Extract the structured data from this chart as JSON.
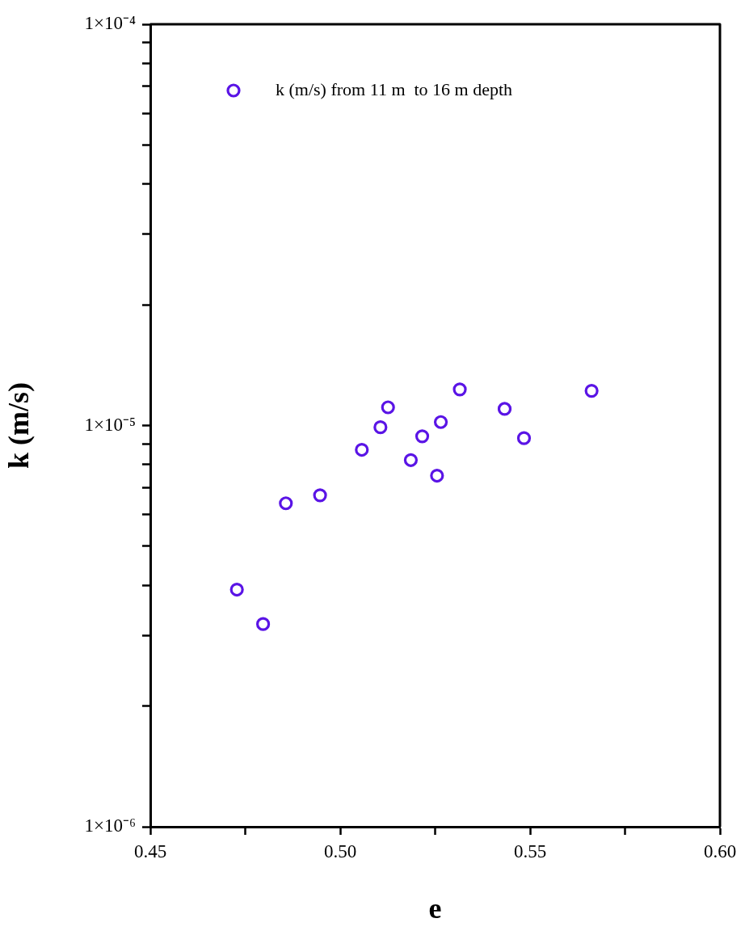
{
  "chart_data": {
    "type": "scatter",
    "xlabel": "e",
    "ylabel": "k (m/s)",
    "log": "y",
    "legend": "top left",
    "marker": "circle",
    "grid": false,
    "xlim": [
      0.45,
      0.6
    ],
    "ylim": [
      1e-06,
      0.0001
    ],
    "xticks": [
      {
        "value": 0.45,
        "label": "0.45"
      },
      {
        "value": 0.475,
        "label": null
      },
      {
        "value": 0.5,
        "label": "0.50"
      },
      {
        "value": 0.525,
        "label": null
      },
      {
        "value": 0.55,
        "label": "0.55"
      },
      {
        "value": 0.575,
        "label": null
      },
      {
        "value": 0.6,
        "label": "0.60"
      }
    ],
    "yticks": [
      {
        "value": 1e-06,
        "label": "1×10⁻⁶"
      },
      {
        "value": 2e-06,
        "label": null
      },
      {
        "value": 3e-06,
        "label": null
      },
      {
        "value": 4e-06,
        "label": null
      },
      {
        "value": 5e-06,
        "label": null
      },
      {
        "value": 6e-06,
        "label": null
      },
      {
        "value": 7e-06,
        "label": null
      },
      {
        "value": 8e-06,
        "label": null
      },
      {
        "value": 9e-06,
        "label": null
      },
      {
        "value": 1e-05,
        "label": "1×10⁻⁵"
      },
      {
        "value": 2e-05,
        "label": null
      },
      {
        "value": 3e-05,
        "label": null
      },
      {
        "value": 4e-05,
        "label": null
      },
      {
        "value": 5e-05,
        "label": null
      },
      {
        "value": 6e-05,
        "label": null
      },
      {
        "value": 7e-05,
        "label": null
      },
      {
        "value": 8e-05,
        "label": null
      },
      {
        "value": 9e-05,
        "label": null
      },
      {
        "value": 0.0001,
        "label": "1×10⁻⁴"
      }
    ],
    "series": [
      {
        "name": "k (m/s) from 11 m  to 16 m depth",
        "color": "#5a14e6",
        "x": [
          0.4728,
          0.4797,
          0.4857,
          0.4947,
          0.5057,
          0.5106,
          0.5126,
          0.5186,
          0.5216,
          0.5255,
          0.5265,
          0.5315,
          0.5433,
          0.5484,
          0.5662
        ],
        "values": [
          3.9e-06,
          3.2e-06,
          6.4e-06,
          6.7e-06,
          8.7e-06,
          9.9e-06,
          1.11e-05,
          8.2e-06,
          9.4e-06,
          7.5e-06,
          1.02e-05,
          1.23e-05,
          1.1e-05,
          9.3e-06,
          1.22e-05
        ]
      }
    ]
  }
}
